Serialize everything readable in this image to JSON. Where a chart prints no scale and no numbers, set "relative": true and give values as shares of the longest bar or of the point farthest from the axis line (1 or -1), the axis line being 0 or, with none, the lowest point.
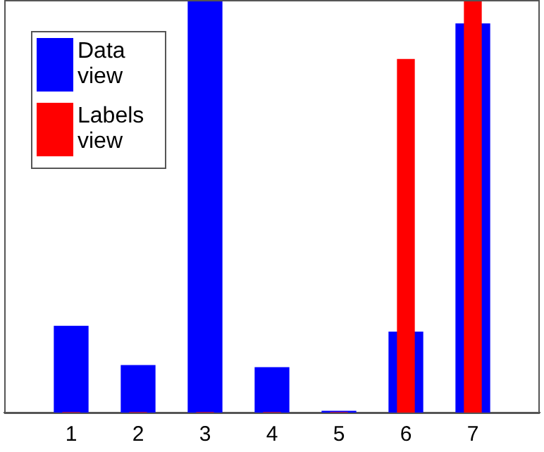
{
  "chart_data": {
    "type": "bar",
    "relative": true,
    "x": [
      1,
      2,
      3,
      4,
      5,
      6,
      7
    ],
    "xlim": [
      0,
      8
    ],
    "xticks": [
      1,
      2,
      3,
      4,
      5,
      6,
      7
    ],
    "legend": "top left",
    "series": [
      {
        "name": "Data view",
        "color": "#0000ff",
        "values": [
          0.209,
          0.114,
          1,
          0.109,
          0.003,
          0.195,
          0.942
        ]
      },
      {
        "name": "Labels view",
        "color": "#ff0000",
        "values": [
          0,
          0,
          0,
          0,
          0,
          0.856,
          1
        ]
      }
    ]
  }
}
